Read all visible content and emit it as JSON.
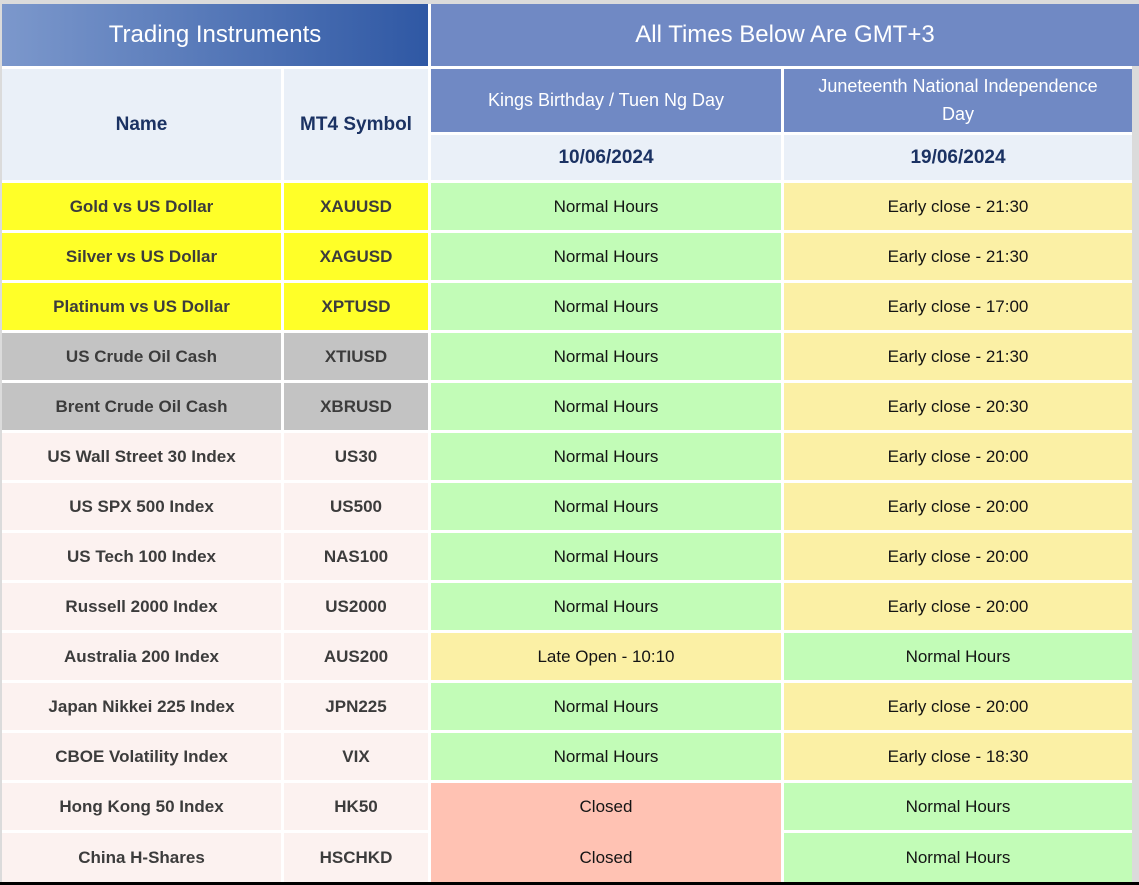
{
  "banner": {
    "left_title": "Trading Instruments",
    "right_title": "All Times Below Are GMT+3"
  },
  "columns": {
    "name_label": "Name",
    "symbol_label": "MT4 Symbol",
    "holiday1": {
      "title": "Kings Birthday / Tuen Ng Day",
      "date": "10/06/2024"
    },
    "holiday2": {
      "title": "Juneteenth National Independence Day",
      "date": "19/06/2024"
    }
  },
  "rows": [
    {
      "name": "Gold vs US Dollar",
      "symbol": "XAUUSD",
      "group": "yellow",
      "holiday1": {
        "text": "Normal Hours",
        "status": "normal"
      },
      "holiday2": {
        "text": "Early close - 21:30",
        "status": "early-close"
      }
    },
    {
      "name": "Silver vs US Dollar",
      "symbol": "XAGUSD",
      "group": "yellow",
      "holiday1": {
        "text": "Normal Hours",
        "status": "normal"
      },
      "holiday2": {
        "text": "Early close - 21:30",
        "status": "early-close"
      }
    },
    {
      "name": "Platinum vs US Dollar",
      "symbol": "XPTUSD",
      "group": "yellow",
      "holiday1": {
        "text": "Normal Hours",
        "status": "normal"
      },
      "holiday2": {
        "text": "Early close - 17:00",
        "status": "early-close"
      }
    },
    {
      "name": "US Crude Oil Cash",
      "symbol": "XTIUSD",
      "group": "gray",
      "holiday1": {
        "text": "Normal Hours",
        "status": "normal"
      },
      "holiday2": {
        "text": "Early close - 21:30",
        "status": "early-close"
      }
    },
    {
      "name": "Brent Crude Oil Cash",
      "symbol": "XBRUSD",
      "group": "gray",
      "holiday1": {
        "text": "Normal Hours",
        "status": "normal"
      },
      "holiday2": {
        "text": "Early close - 20:30",
        "status": "early-close"
      }
    },
    {
      "name": "US Wall Street 30 Index",
      "symbol": "US30",
      "group": "rose",
      "holiday1": {
        "text": "Normal Hours",
        "status": "normal"
      },
      "holiday2": {
        "text": "Early close - 20:00",
        "status": "early-close"
      }
    },
    {
      "name": "US SPX 500 Index",
      "symbol": "US500",
      "group": "rose",
      "holiday1": {
        "text": "Normal Hours",
        "status": "normal"
      },
      "holiday2": {
        "text": "Early close - 20:00",
        "status": "early-close"
      }
    },
    {
      "name": "US Tech 100 Index",
      "symbol": "NAS100",
      "group": "rose",
      "holiday1": {
        "text": "Normal Hours",
        "status": "normal"
      },
      "holiday2": {
        "text": "Early close - 20:00",
        "status": "early-close"
      }
    },
    {
      "name": "Russell 2000 Index",
      "symbol": "US2000",
      "group": "rose",
      "holiday1": {
        "text": "Normal Hours",
        "status": "normal"
      },
      "holiday2": {
        "text": "Early close - 20:00",
        "status": "early-close"
      }
    },
    {
      "name": "Australia 200 Index",
      "symbol": "AUS200",
      "group": "rose",
      "holiday1": {
        "text": "Late Open - 10:10",
        "status": "late-open"
      },
      "holiday2": {
        "text": "Normal Hours",
        "status": "normal"
      }
    },
    {
      "name": "Japan Nikkei 225 Index",
      "symbol": "JPN225",
      "group": "rose",
      "holiday1": {
        "text": "Normal Hours",
        "status": "normal"
      },
      "holiday2": {
        "text": "Early close - 20:00",
        "status": "early-close"
      }
    },
    {
      "name": "CBOE Volatility Index",
      "symbol": "VIX",
      "group": "rose",
      "holiday1": {
        "text": "Normal Hours",
        "status": "normal"
      },
      "holiday2": {
        "text": "Early close - 18:30",
        "status": "early-close"
      }
    },
    {
      "name": "Hong Kong 50 Index",
      "symbol": "HK50",
      "group": "rose",
      "holiday1": {
        "text": "Closed",
        "status": "closed",
        "join_below": true
      },
      "holiday2": {
        "text": "Normal Hours",
        "status": "normal"
      }
    },
    {
      "name": "China H-Shares",
      "symbol": "HSCHKD",
      "group": "rose",
      "holiday1": {
        "text": "Closed",
        "status": "closed"
      },
      "holiday2": {
        "text": "Normal Hours",
        "status": "normal"
      }
    }
  ],
  "colors": {
    "banner_gradient_start": "#7C98CC",
    "banner_gradient_end": "#2F58A4",
    "banner_right_bg": "#7089C4",
    "holiday_header_bg": "#7089C4",
    "light_header_bg": "#EAF0F8",
    "header_text": "#1B3263",
    "group_yellow": "#FFFF28",
    "group_gray": "#C3C3C3",
    "group_rose": "#FCF2F0",
    "status_normal": "#C2FCB7",
    "status_early_late": "#FBF0A5",
    "status_closed": "#FFC2B3"
  }
}
